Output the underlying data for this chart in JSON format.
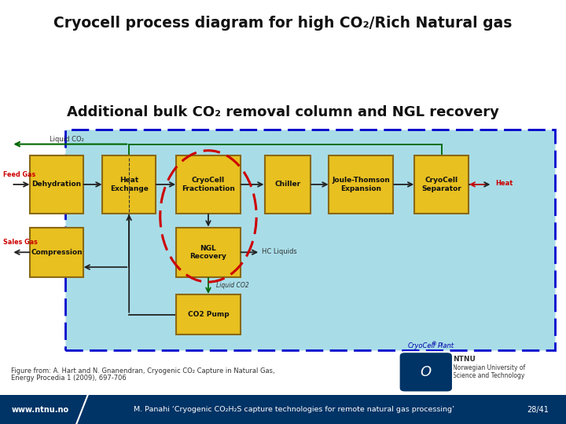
{
  "title": "Cryocell process diagram for high CO₂/Rich Natural gas",
  "subtitle": "Additional bulk CO₂ removal column and NGL recovery",
  "figure_caption_line1": "Figure from: A. Hart and N. Gnanendran, Cryogenic CO₂ Capture in Natural Gas,",
  "figure_caption_line2": "Energy Procedia 1 (2009), 697-706",
  "footer_left": "www.ntnu.no",
  "footer_center": "M. Panahi ‘Cryogenic CO₂H₂S capture technologies for remote natural gas processing’",
  "footer_right": "28/41",
  "footer_bg": "#003366",
  "bg_color": "#ffffff",
  "diagram_bg": "#a8dde8",
  "dashed_box_color": "#0000cc",
  "box_color": "#e8c020",
  "box_edge": "#8B6914",
  "red_dash_color": "#cc0000",
  "label_color": "#cc0000",
  "arrow_color": "#006600",
  "dark_arrow": "#222222",
  "ntnu_bg": "#003366",
  "cryo_plant_label": "CryoCell®Plant"
}
